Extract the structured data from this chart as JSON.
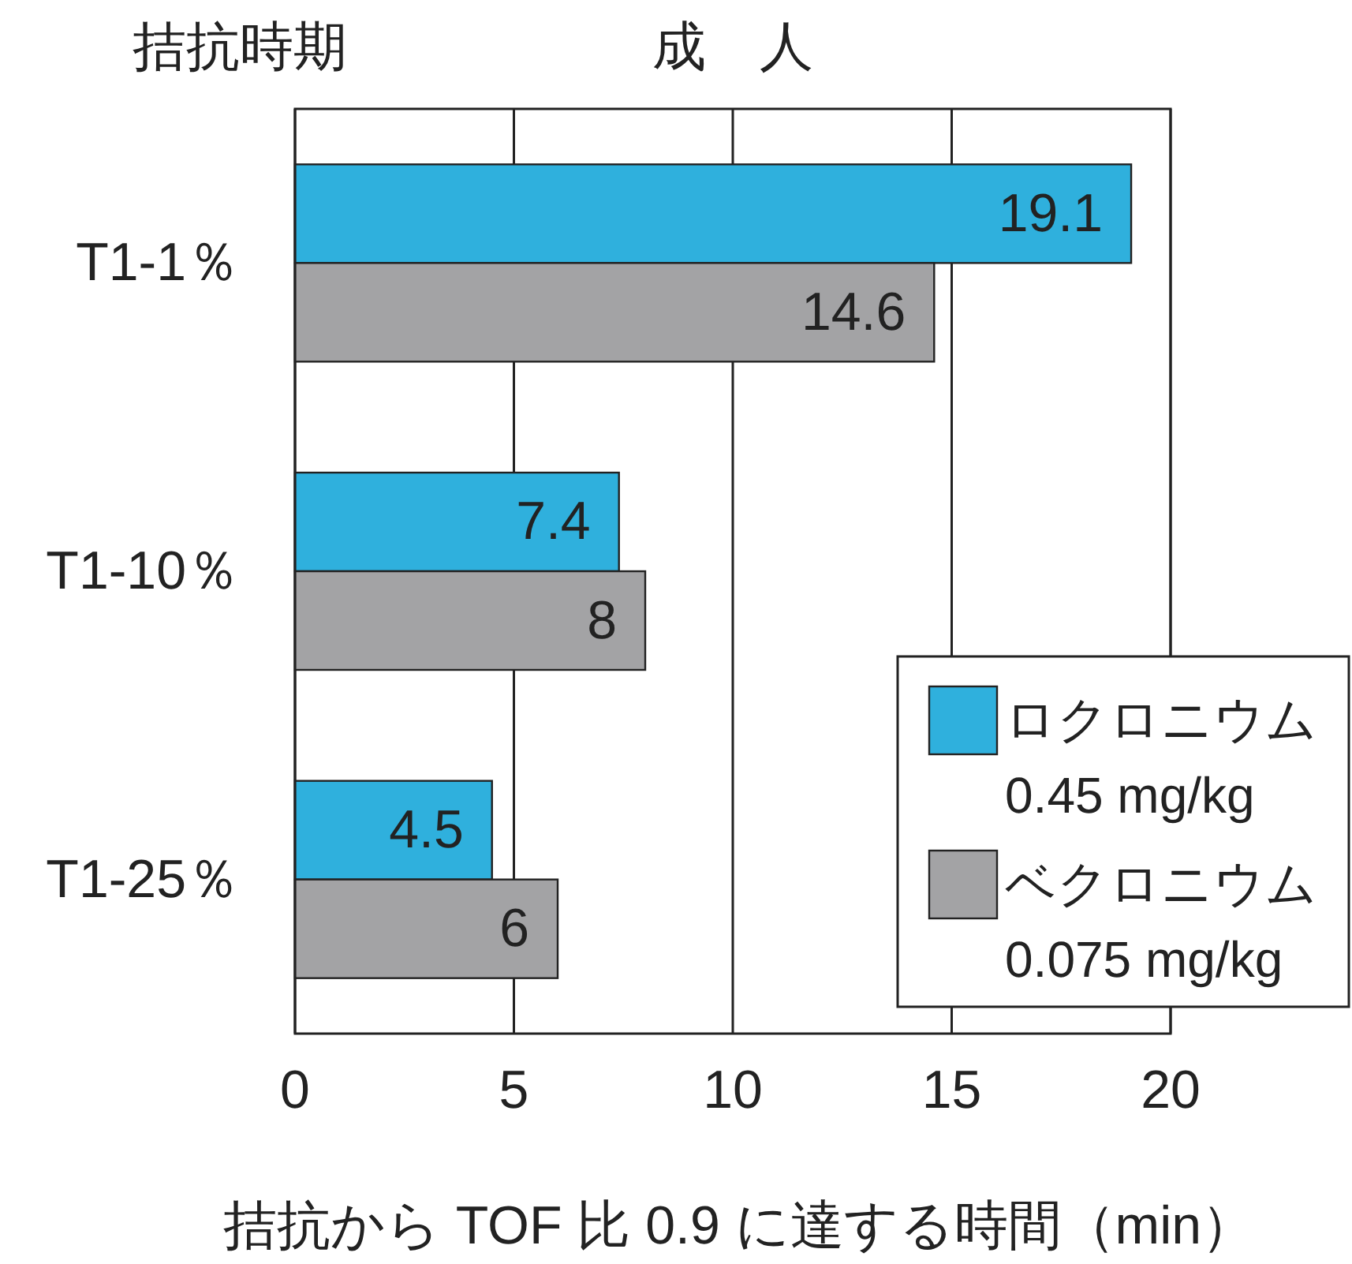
{
  "chart_data": {
    "type": "bar",
    "orientation": "horizontal",
    "title": "成　人",
    "ylabel": "拮抗時期",
    "xlabel": "拮抗から TOF 比 0.9 に達する時間（min）",
    "categories": [
      "T1-1％",
      "T1-10％",
      "T1-25％"
    ],
    "series": [
      {
        "name": "ロクロニウム\n0.45 mg/kg",
        "color": "#2fb0dd",
        "values": [
          19.1,
          7.4,
          4.5
        ]
      },
      {
        "name": "ベクロニウム\n0.075 mg/kg",
        "color": "#a3a3a5",
        "values": [
          14.6,
          8,
          6
        ]
      }
    ],
    "xlim": [
      0,
      20
    ],
    "xticks": [
      0,
      5,
      10,
      15,
      20
    ],
    "grid": "x",
    "legend": "bottom right",
    "data_labels": true
  }
}
